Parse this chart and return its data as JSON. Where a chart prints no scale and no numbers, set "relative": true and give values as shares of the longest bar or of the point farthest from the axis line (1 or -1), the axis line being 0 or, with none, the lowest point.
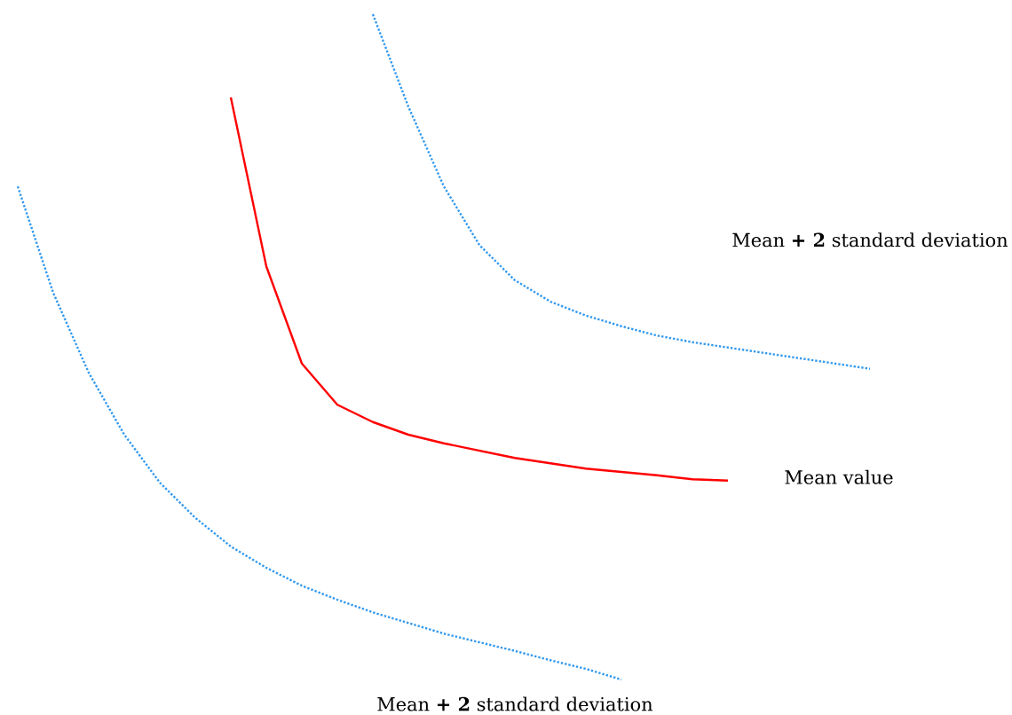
{
  "chart_data": {
    "type": "line",
    "relative": true,
    "categories": [
      null,
      null,
      null,
      null,
      null,
      null,
      null,
      null,
      null,
      null,
      null,
      null,
      null,
      null,
      null,
      null,
      null,
      null,
      null,
      null,
      null,
      null,
      null,
      null,
      null
    ],
    "series": [
      {
        "color": "#3399ee",
        "line_style": "dotted",
        "values": [
          null,
          null,
          null,
          null,
          null,
          null,
          null,
          null,
          null,
          null,
          1,
          0.861,
          0.741,
          0.653,
          0.6,
          0.568,
          0.547,
          0.531,
          0.517,
          0.507,
          0.499,
          0.491,
          0.483,
          0.475,
          0.467
        ]
      },
      {
        "color": "#ff0000",
        "line_style": "solid",
        "values": [
          null,
          null,
          null,
          null,
          null,
          null,
          0.875,
          0.621,
          0.475,
          0.413,
          0.387,
          0.368,
          0.355,
          0.344,
          0.333,
          0.325,
          0.317,
          0.312,
          0.307,
          0.301,
          0.299,
          null,
          null,
          null,
          null
        ]
      },
      {
        "color": "#3399ee",
        "line_style": "dotted",
        "values": [
          0.741,
          0.581,
          0.461,
          0.368,
          0.296,
          0.243,
          0.2,
          0.168,
          0.141,
          0.12,
          0.101,
          0.085,
          0.069,
          0.056,
          0.043,
          0.029,
          0.016,
          0,
          null,
          null,
          null,
          null,
          null,
          null,
          null
        ]
      }
    ],
    "annotations": [
      "Mean **+ 2** standard deviation",
      "Mean value",
      "Mean **+ 2** standard deviation"
    ]
  }
}
